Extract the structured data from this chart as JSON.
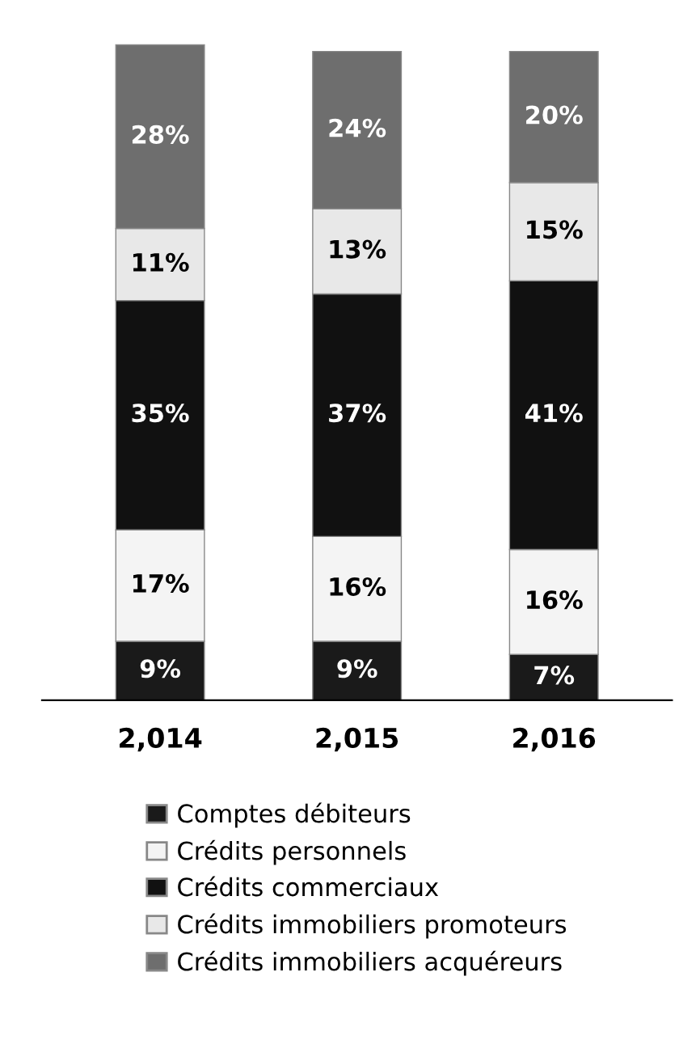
{
  "chart_data": {
    "type": "bar",
    "stacked": true,
    "legend": "bottom",
    "grid": false,
    "tick_labels": "x",
    "categories": [
      "2,014",
      "2,015",
      "2,016"
    ],
    "series": [
      {
        "name": "Comptes débiteurs",
        "color": "#1a1a1a",
        "values": [
          9,
          9,
          7
        ],
        "value_labels": [
          "9%",
          "9%",
          "7%"
        ]
      },
      {
        "name": "Crédits personnels",
        "color": "#f4f4f4",
        "values": [
          17,
          16,
          16
        ],
        "value_labels": [
          "17%",
          "16%",
          "16%"
        ]
      },
      {
        "name": "Crédits commerciaux",
        "color": "#111111",
        "values": [
          35,
          37,
          41
        ],
        "value_labels": [
          "35%",
          "37%",
          "41%"
        ]
      },
      {
        "name": "Crédits immobiliers promoteurs",
        "color": "#e8e8e8",
        "values": [
          11,
          13,
          15
        ],
        "value_labels": [
          "11%",
          "13%",
          "15%"
        ]
      },
      {
        "name": "Crédits immobiliers acquéreurs",
        "color": "#6e6e6e",
        "values": [
          28,
          24,
          20
        ],
        "value_labels": [
          "28%",
          "24%",
          "20%"
        ]
      }
    ]
  }
}
